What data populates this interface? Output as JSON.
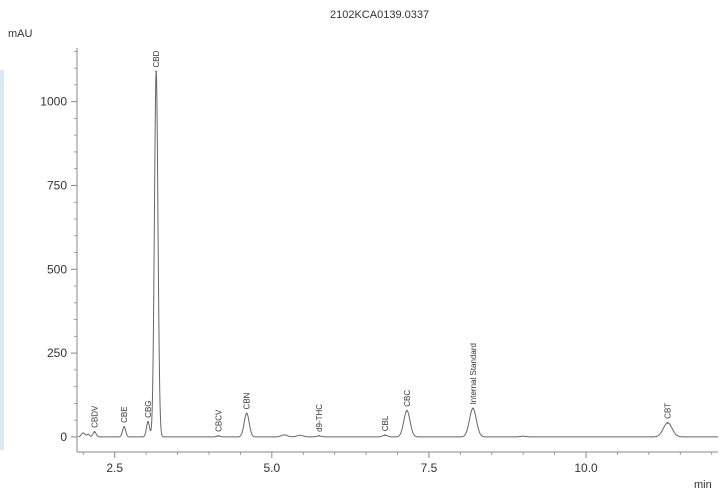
{
  "chart_data": {
    "type": "line",
    "title": "2102KCA0139.0337",
    "xlabel": "min",
    "ylabel": "mAU",
    "xlim": [
      1.9,
      12.1
    ],
    "ylim": [
      -45,
      1160
    ],
    "x_ticks": [
      2.5,
      5.0,
      7.5,
      10.0
    ],
    "x_tick_labels": [
      "2.5",
      "5.0",
      "7.5",
      "10.0"
    ],
    "y_ticks": [
      0,
      250,
      500,
      750,
      1000
    ],
    "y_tick_labels": [
      "0",
      "250",
      "500",
      "750",
      "1000"
    ],
    "grid": false,
    "legend": "none",
    "colors": {
      "trace": "#666666",
      "axis": "#888888",
      "text": "#333333"
    },
    "peaks": [
      {
        "label": "CBDV",
        "rt": 2.18,
        "height": 15,
        "width": 0.025
      },
      {
        "label": "CBE",
        "rt": 2.65,
        "height": 30,
        "width": 0.025
      },
      {
        "label": "CBG",
        "rt": 3.03,
        "height": 45,
        "width": 0.025
      },
      {
        "label": "CBD",
        "rt": 3.16,
        "height": 1090,
        "width": 0.028
      },
      {
        "label": "CBCV",
        "rt": 4.15,
        "height": 3,
        "width": 0.03
      },
      {
        "label": "CBN",
        "rt": 4.6,
        "height": 70,
        "width": 0.04
      },
      {
        "label": "d9-THC",
        "rt": 5.75,
        "height": 3,
        "width": 0.04
      },
      {
        "label": "CBL",
        "rt": 6.8,
        "height": 5,
        "width": 0.04
      },
      {
        "label": "CBC",
        "rt": 7.15,
        "height": 78,
        "width": 0.05
      },
      {
        "label": "Internal Standard",
        "rt": 8.2,
        "height": 85,
        "width": 0.055
      },
      {
        "label": "CBT",
        "rt": 11.3,
        "height": 42,
        "width": 0.07
      }
    ],
    "minor_peaks": [
      {
        "rt": 2.0,
        "height": 12,
        "width": 0.03
      },
      {
        "rt": 2.08,
        "height": 8,
        "width": 0.02
      },
      {
        "rt": 5.2,
        "height": 6,
        "width": 0.05
      },
      {
        "rt": 5.45,
        "height": 5,
        "width": 0.05
      },
      {
        "rt": 9.0,
        "height": 2,
        "width": 0.05
      }
    ]
  }
}
